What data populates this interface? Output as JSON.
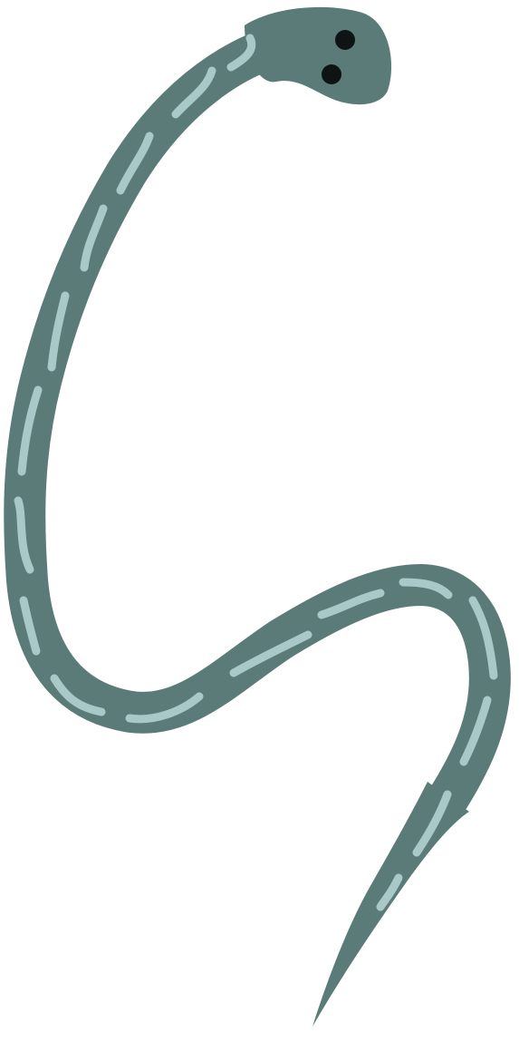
{
  "illustration": {
    "subject": "snake",
    "colors": {
      "background": "#ffffff",
      "body": "#5b7b79",
      "pattern": "#a9c8c8",
      "eye": "#0e1414"
    },
    "eye_count": 2,
    "icons": [
      "snake-head-icon",
      "eye-icon",
      "body-pattern-icon"
    ]
  }
}
